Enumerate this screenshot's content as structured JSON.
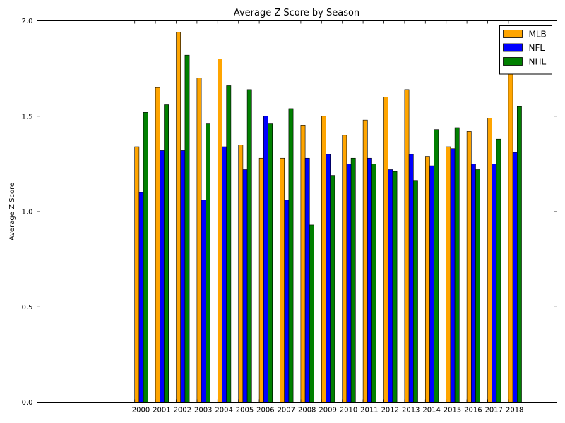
{
  "chart_data": {
    "type": "bar",
    "title": "Average Z Score by Season",
    "xlabel": "",
    "ylabel": "Average Z Score",
    "categories": [
      "2000",
      "2001",
      "2002",
      "2003",
      "2004",
      "2005",
      "2006",
      "2007",
      "2008",
      "2009",
      "2010",
      "2011",
      "2012",
      "2013",
      "2014",
      "2015",
      "2016",
      "2017",
      "2018"
    ],
    "series": [
      {
        "name": "MLB",
        "color": "#FFA500",
        "values": [
          1.34,
          1.65,
          1.94,
          1.7,
          1.8,
          1.35,
          1.28,
          1.28,
          1.45,
          1.5,
          1.4,
          1.48,
          1.6,
          1.64,
          1.29,
          1.34,
          1.42,
          1.49,
          1.8
        ]
      },
      {
        "name": "NFL",
        "color": "#0000FF",
        "values": [
          1.1,
          1.32,
          1.32,
          1.06,
          1.34,
          1.22,
          1.5,
          1.06,
          1.28,
          1.3,
          1.25,
          1.28,
          1.22,
          1.3,
          1.24,
          1.33,
          1.25,
          1.25,
          1.31
        ]
      },
      {
        "name": "NHL",
        "color": "#008000",
        "values": [
          1.52,
          1.56,
          1.82,
          1.46,
          1.66,
          1.64,
          1.46,
          1.54,
          0.93,
          1.19,
          1.28,
          1.25,
          1.21,
          1.16,
          1.43,
          1.44,
          1.22,
          1.38,
          1.55
        ]
      }
    ],
    "ylim": [
      0.0,
      2.0
    ],
    "yticks": [
      "0.0",
      "0.5",
      "1.0",
      "1.5",
      "2.0"
    ],
    "grid": false,
    "legend_position": "top-right"
  }
}
